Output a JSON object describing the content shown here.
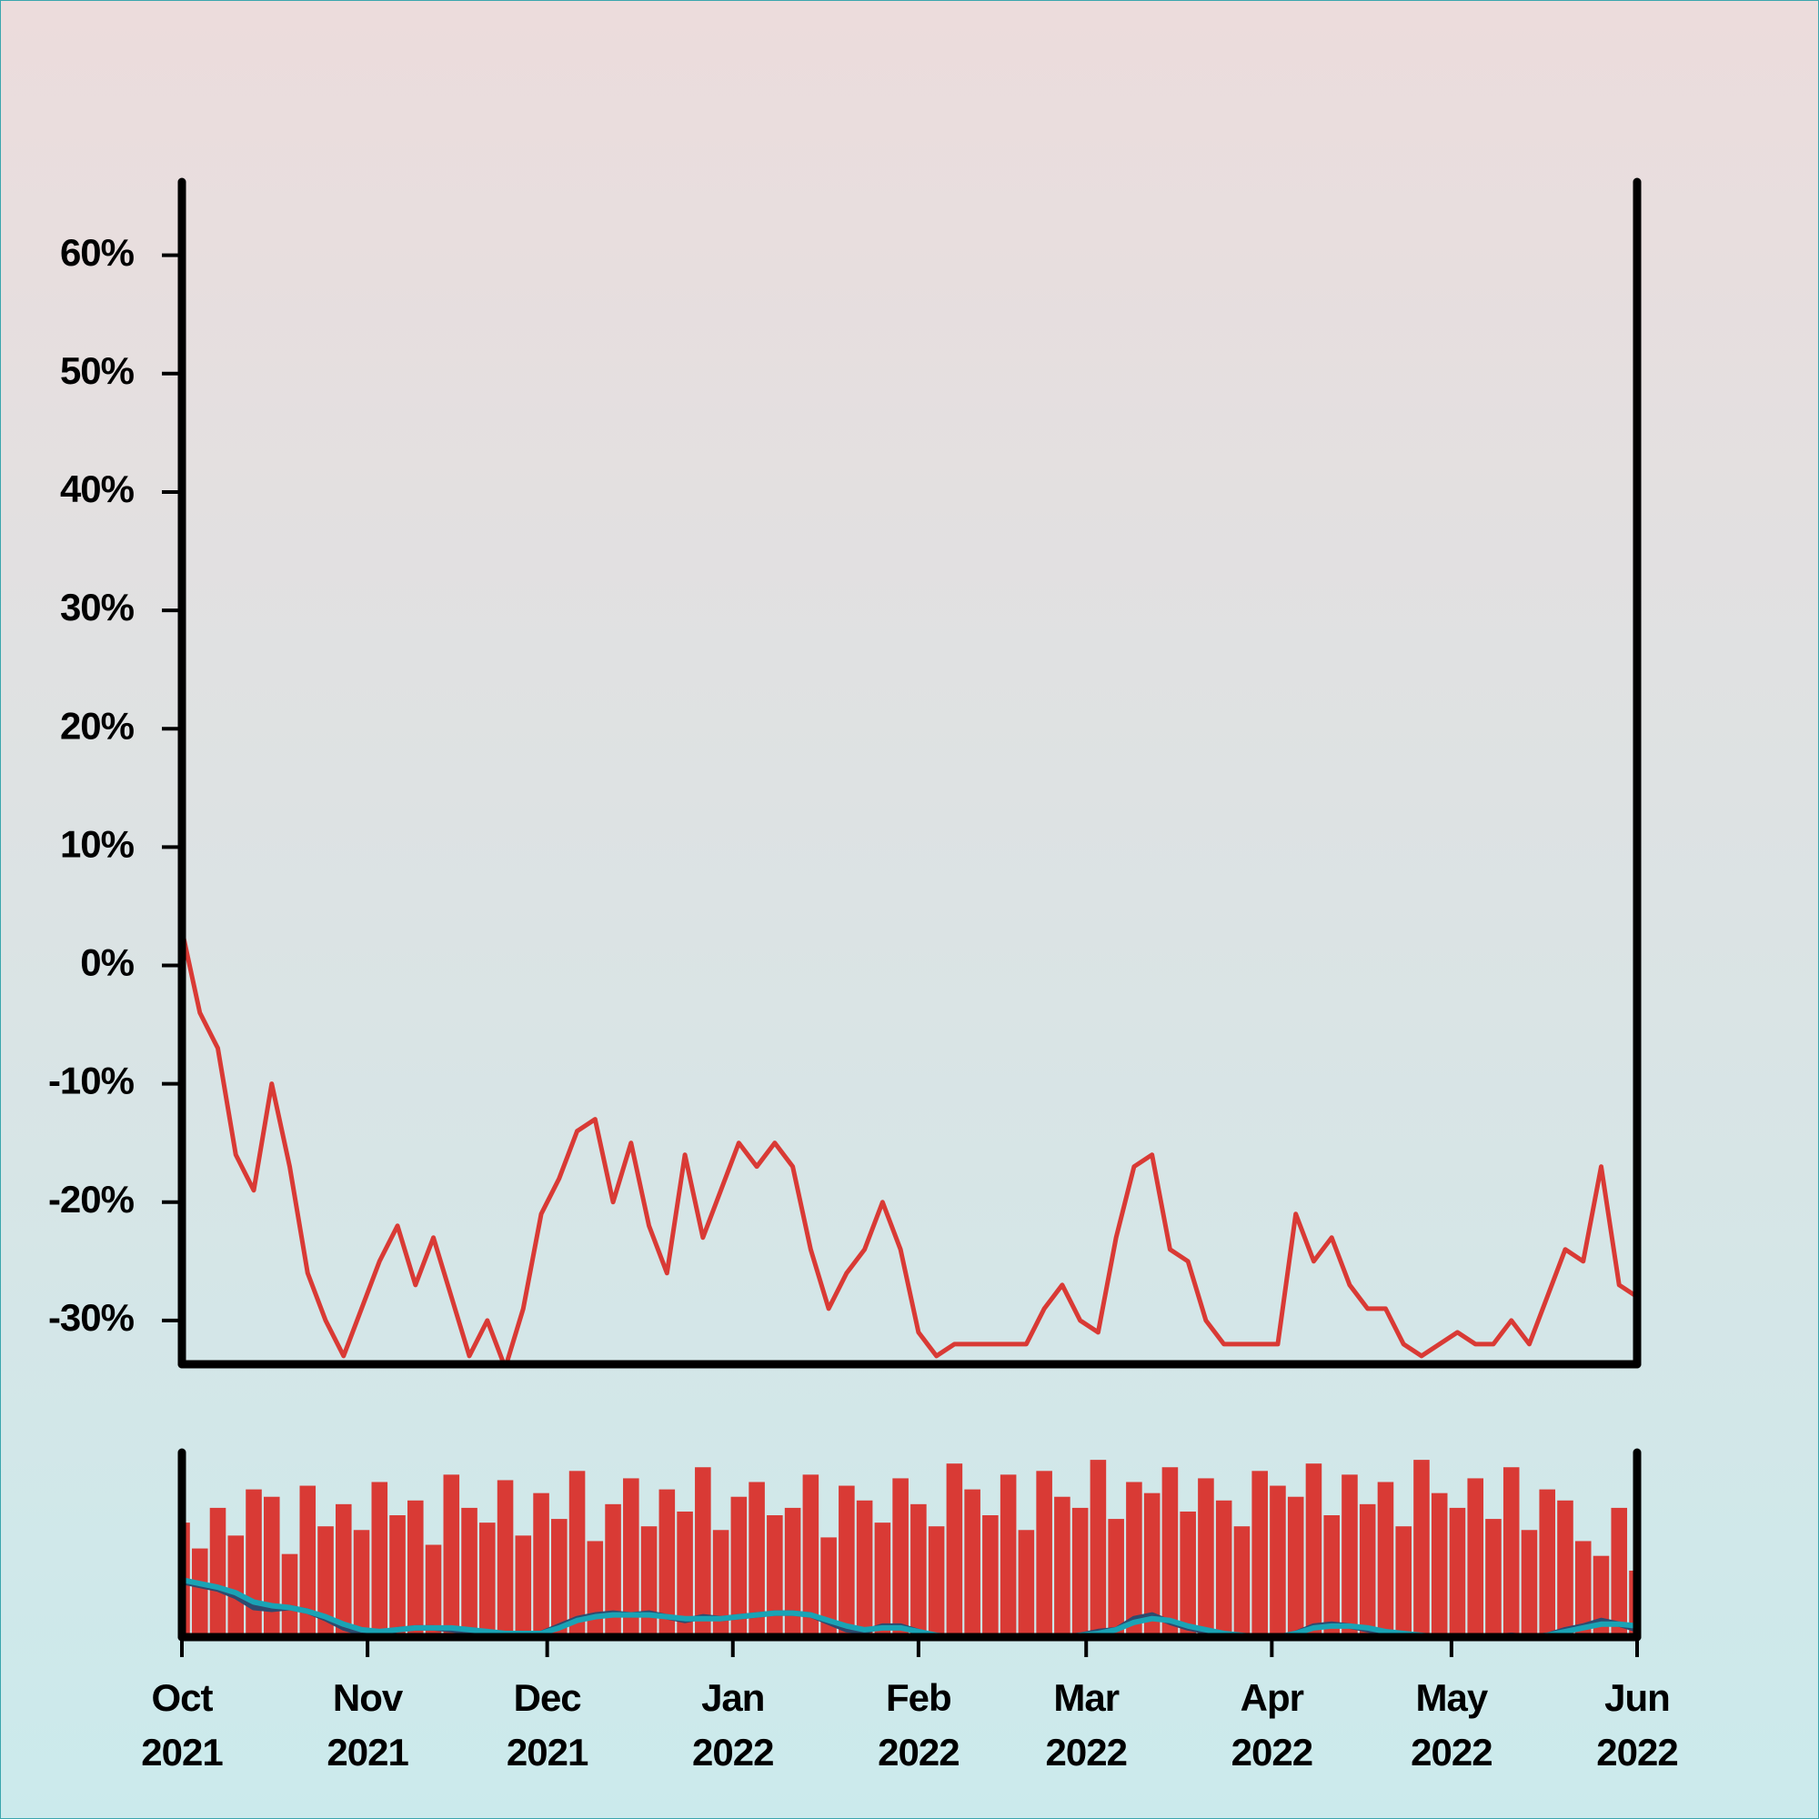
{
  "chart_data": [
    {
      "type": "line",
      "xlim": [
        0,
        243
      ],
      "ylim": [
        -33.7,
        66.2
      ],
      "yticks": [
        {
          "value": 60,
          "label": "60%"
        },
        {
          "value": 50,
          "label": "50%"
        },
        {
          "value": 40,
          "label": "40%"
        },
        {
          "value": 30,
          "label": "30%"
        },
        {
          "value": 20,
          "label": "20%"
        },
        {
          "value": 10,
          "label": "10%"
        },
        {
          "value": 0,
          "label": "0%"
        },
        {
          "value": -10,
          "label": "-10%"
        },
        {
          "value": -20,
          "label": "-20%"
        },
        {
          "value": -30,
          "label": "-30%"
        }
      ],
      "x": [
        0,
        3,
        6,
        9,
        12,
        15,
        18,
        21,
        24,
        27,
        30,
        33,
        36,
        39,
        42,
        45,
        48,
        51,
        54,
        57,
        60,
        63,
        66,
        69,
        72,
        75,
        78,
        81,
        84,
        87,
        90,
        93,
        96,
        99,
        102,
        105,
        108,
        111,
        114,
        117,
        120,
        123,
        126,
        129,
        132,
        135,
        138,
        141,
        144,
        147,
        150,
        153,
        156,
        159,
        162,
        165,
        168,
        171,
        174,
        177,
        180,
        183,
        186,
        189,
        192,
        195,
        198,
        201,
        204,
        207,
        210,
        213,
        216,
        219,
        222,
        225,
        228,
        231,
        234,
        237,
        240,
        243
      ],
      "series": [
        {
          "color": "#d93a35",
          "values": [
            3,
            -4,
            -7,
            -16,
            -19,
            -10,
            -17,
            -26,
            -30,
            -33,
            -29,
            -25,
            -22,
            -27,
            -23,
            -28,
            -33,
            -30,
            -34,
            -29,
            -21,
            -18,
            -14,
            -13,
            -20,
            -15,
            -22,
            -26,
            -16,
            -23,
            -19,
            -15,
            -17,
            -15,
            -17,
            -24,
            -29,
            -26,
            -24,
            -20,
            -24,
            -31,
            -33,
            -32,
            -32,
            -32,
            -32,
            -32,
            -29,
            -27,
            -30,
            -31,
            -23,
            -17,
            -16,
            -24,
            -25,
            -30,
            -32,
            -32,
            -32,
            -32,
            -21,
            -25,
            -23,
            -27,
            -29,
            -29,
            -32,
            -33,
            -32,
            -31,
            -32,
            -32,
            -30,
            -32,
            -28,
            -24,
            -25,
            -17,
            -27,
            -28
          ]
        }
      ]
    },
    {
      "type": "bar",
      "xlim": [
        0,
        243
      ],
      "ylim": [
        0,
        100
      ],
      "xticks": [
        {
          "value": 0,
          "label": "Oct 2021"
        },
        {
          "value": 31,
          "label": "Nov 2021"
        },
        {
          "value": 61,
          "label": "Dec 2021"
        },
        {
          "value": 92,
          "label": "Jan 2022"
        },
        {
          "value": 123,
          "label": "Feb 2022"
        },
        {
          "value": 151,
          "label": "Mar 2022"
        },
        {
          "value": 182,
          "label": "Apr 2022"
        },
        {
          "value": 212,
          "label": "May 2022"
        },
        {
          "value": 243,
          "label": "Jun 2022"
        }
      ],
      "x": [
        0,
        3,
        6,
        9,
        12,
        15,
        18,
        21,
        24,
        27,
        30,
        33,
        36,
        39,
        42,
        45,
        48,
        51,
        54,
        57,
        60,
        63,
        66,
        69,
        72,
        75,
        78,
        81,
        84,
        87,
        90,
        93,
        96,
        99,
        102,
        105,
        108,
        111,
        114,
        117,
        120,
        123,
        126,
        129,
        132,
        135,
        138,
        141,
        144,
        147,
        150,
        153,
        156,
        159,
        162,
        165,
        168,
        171,
        174,
        177,
        180,
        183,
        186,
        189,
        192,
        195,
        198,
        201,
        204,
        207,
        210,
        213,
        216,
        219,
        222,
        225,
        228,
        231,
        234,
        237,
        240,
        243
      ],
      "series": [
        {
          "type": "bar",
          "color": "#d93a35",
          "values": [
            62,
            48,
            70,
            55,
            80,
            76,
            45,
            82,
            60,
            72,
            58,
            84,
            66,
            74,
            50,
            88,
            70,
            62,
            85,
            55,
            78,
            64,
            90,
            52,
            72,
            86,
            60,
            80,
            68,
            92,
            58,
            76,
            84,
            66,
            70,
            88,
            54,
            82,
            74,
            62,
            86,
            72,
            60,
            94,
            80,
            66,
            88,
            58,
            90,
            76,
            70,
            96,
            64,
            84,
            78,
            92,
            68,
            86,
            74,
            60,
            90,
            82,
            76,
            94,
            66,
            88,
            72,
            84,
            60,
            96,
            78,
            70,
            86,
            64,
            92,
            58,
            80,
            74,
            52,
            44,
            70,
            36
          ]
        },
        {
          "type": "line",
          "color": "#2f4a6e",
          "values": [
            30,
            28,
            26,
            22,
            16,
            15,
            16,
            14,
            10,
            5,
            2,
            2,
            4,
            5,
            5,
            4,
            3,
            2,
            1,
            1,
            2,
            6,
            10,
            12,
            13,
            12,
            13,
            11,
            9,
            11,
            10,
            11,
            12,
            13,
            13,
            12,
            8,
            4,
            3,
            6,
            6,
            3,
            0,
            0,
            0,
            0,
            0,
            0,
            0,
            0,
            1,
            3,
            4,
            10,
            12,
            8,
            5,
            3,
            1,
            0,
            0,
            0,
            2,
            6,
            7,
            6,
            4,
            2,
            1,
            0,
            0,
            0,
            0,
            0,
            1,
            0,
            1,
            4,
            6,
            9,
            7,
            4
          ]
        },
        {
          "type": "line",
          "color": "#1aa3b5",
          "values": [
            31,
            29,
            27,
            24,
            19,
            17,
            16,
            14,
            11,
            7,
            4,
            3,
            4,
            5,
            5,
            5,
            4,
            3,
            2,
            2,
            2,
            5,
            9,
            11,
            12,
            12,
            12,
            11,
            10,
            10,
            10,
            11,
            12,
            13,
            13,
            12,
            9,
            6,
            4,
            5,
            5,
            3,
            1,
            0,
            0,
            0,
            0,
            0,
            0,
            0,
            1,
            2,
            4,
            8,
            10,
            9,
            6,
            4,
            2,
            1,
            0,
            0,
            2,
            5,
            6,
            6,
            5,
            3,
            2,
            1,
            0,
            0,
            0,
            0,
            0,
            0,
            1,
            3,
            5,
            7,
            7,
            6
          ]
        }
      ]
    }
  ]
}
